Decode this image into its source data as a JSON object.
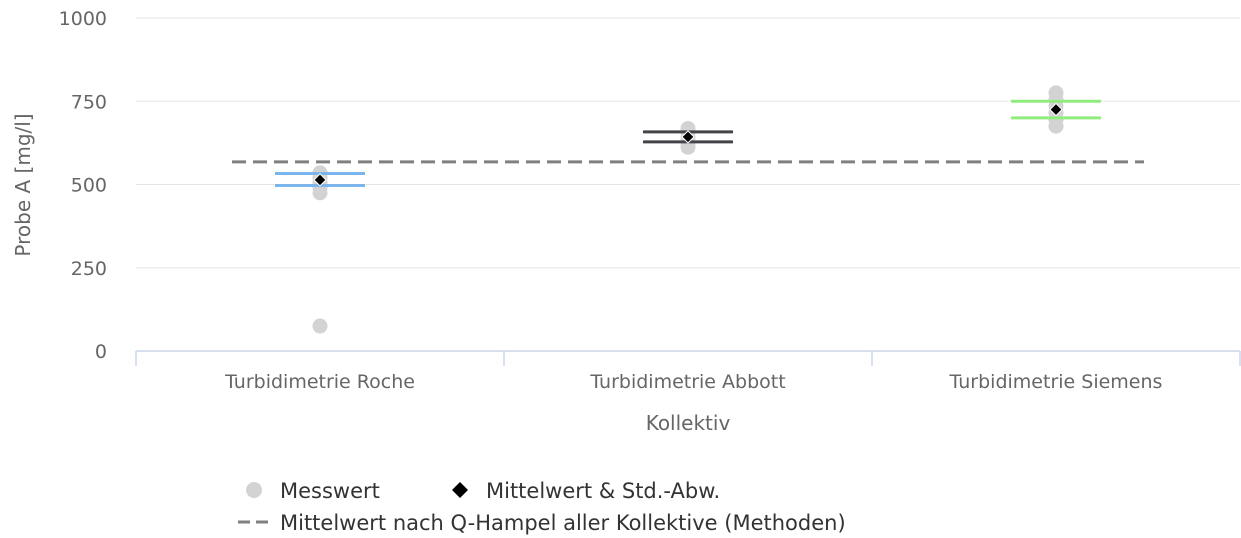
{
  "chart_data": {
    "type": "scatter",
    "xlabel": "Kollektiv",
    "ylabel": "Probe A [mg/l]",
    "ylim": [
      0,
      1000
    ],
    "yticks": [
      0,
      250,
      500,
      750,
      1000
    ],
    "categories": [
      "Turbidimetrie Roche",
      "Turbidimetrie Abbott",
      "Turbidimetrie Siemens"
    ],
    "grid": true,
    "legend_position": "bottom",
    "series": [
      {
        "name": "Messwert",
        "color": "#d3d3d3",
        "points": [
          {
            "category": 0,
            "y": 75
          },
          {
            "category": 0,
            "y": 475
          },
          {
            "category": 0,
            "y": 490
          },
          {
            "category": 0,
            "y": 505
          },
          {
            "category": 0,
            "y": 520
          },
          {
            "category": 0,
            "y": 535
          },
          {
            "category": 1,
            "y": 612
          },
          {
            "category": 1,
            "y": 625
          },
          {
            "category": 1,
            "y": 640
          },
          {
            "category": 1,
            "y": 655
          },
          {
            "category": 1,
            "y": 668
          },
          {
            "category": 2,
            "y": 675
          },
          {
            "category": 2,
            "y": 695
          },
          {
            "category": 2,
            "y": 715
          },
          {
            "category": 2,
            "y": 735
          },
          {
            "category": 2,
            "y": 755
          },
          {
            "category": 2,
            "y": 775
          }
        ]
      },
      {
        "name": "Mittelwert & Std.-Abw.",
        "color": "#000000",
        "points": [
          {
            "category": 0,
            "mean": 514,
            "upper": 533,
            "lower": 497,
            "color": "#7cb5ec"
          },
          {
            "category": 1,
            "mean": 643,
            "upper": 658,
            "lower": 628,
            "color": "#434348"
          },
          {
            "category": 2,
            "mean": 725,
            "upper": 750,
            "lower": 700,
            "color": "#90ed7d"
          }
        ]
      },
      {
        "name": "Mittelwert nach Q-Hampel aller Kollektive (Methoden)",
        "color": "#808080",
        "style": "dashed",
        "y": 568
      }
    ]
  }
}
